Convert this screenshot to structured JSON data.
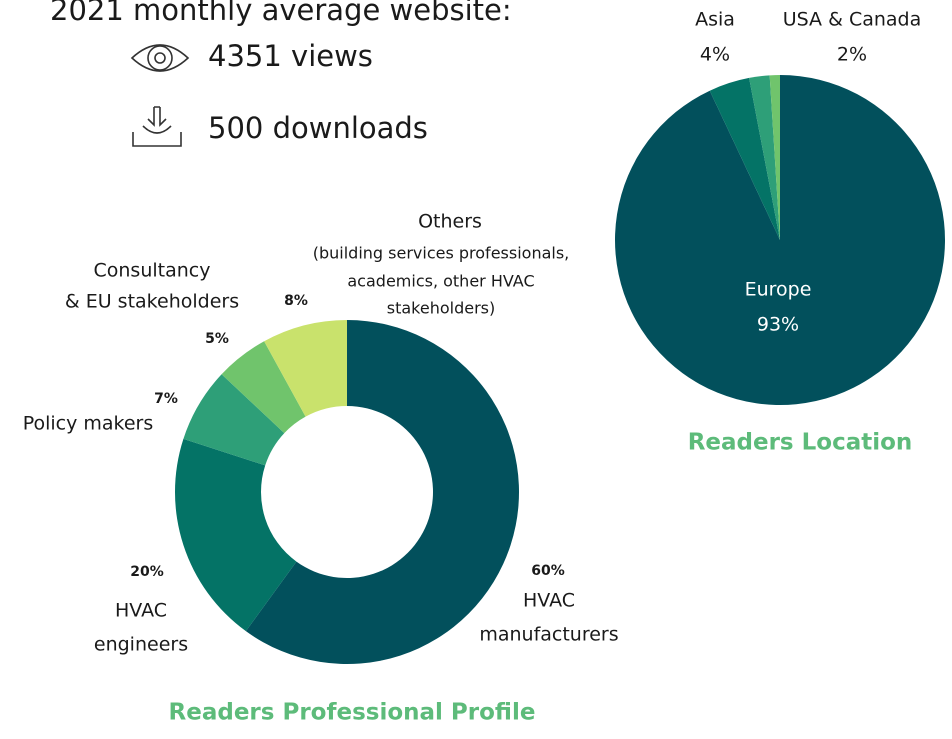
{
  "header": {
    "title": "2021 monthly average website:",
    "stats": [
      {
        "value": 4351,
        "label": "views"
      },
      {
        "value": 500,
        "label": "downloads"
      }
    ]
  },
  "chart_data": [
    {
      "type": "donut",
      "title": "Readers Professional Profile",
      "categories": [
        [
          "HVAC",
          "manufacturers"
        ],
        [
          "HVAC",
          "engineers"
        ],
        [
          "Policy makers"
        ],
        [
          "Consultancy",
          "& EU stakeholders"
        ],
        [
          "Others",
          "(building services professionals,",
          "academics, other HVAC",
          "stakeholders)"
        ]
      ],
      "values": [
        60,
        20,
        7,
        5,
        8
      ],
      "value_labels": [
        "60%",
        "20%",
        "7%",
        "5%",
        "8%"
      ],
      "colors": [
        "#02505c",
        "#047366",
        "#2e9f78",
        "#70c46c",
        "#c9e26c"
      ]
    },
    {
      "type": "pie",
      "title": "Readers Location",
      "categories": [
        [
          "Europe"
        ],
        [
          "Asia"
        ],
        [
          "USA & Canada"
        ],
        null
      ],
      "values": [
        93,
        4,
        2,
        1
      ],
      "value_labels": [
        "93%",
        "4%",
        "2%",
        null
      ],
      "colors": [
        "#02505c",
        "#047366",
        "#2e9f78",
        "#70c46c"
      ]
    }
  ]
}
